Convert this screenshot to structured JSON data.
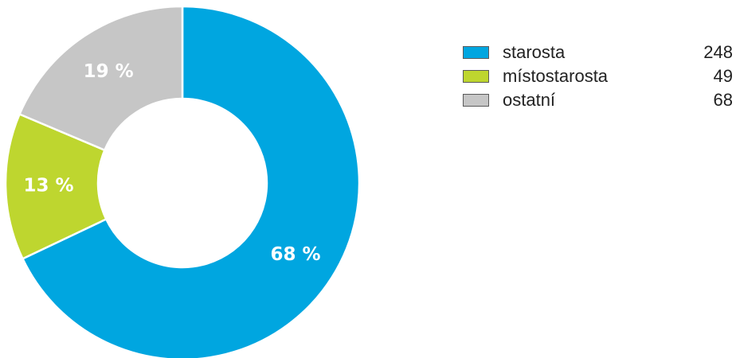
{
  "chart_data": {
    "type": "pie",
    "variant": "donut",
    "series": [
      {
        "name": "starosta",
        "value": 248,
        "percent_label": "68 %",
        "color": "#00a6e0"
      },
      {
        "name": "místostarosta",
        "value": 49,
        "percent_label": "13 %",
        "color": "#bed62f"
      },
      {
        "name": "ostatní",
        "value": 68,
        "percent_label": "19 %",
        "color": "#c6c6c6"
      }
    ],
    "legend_placement": "top-right"
  }
}
